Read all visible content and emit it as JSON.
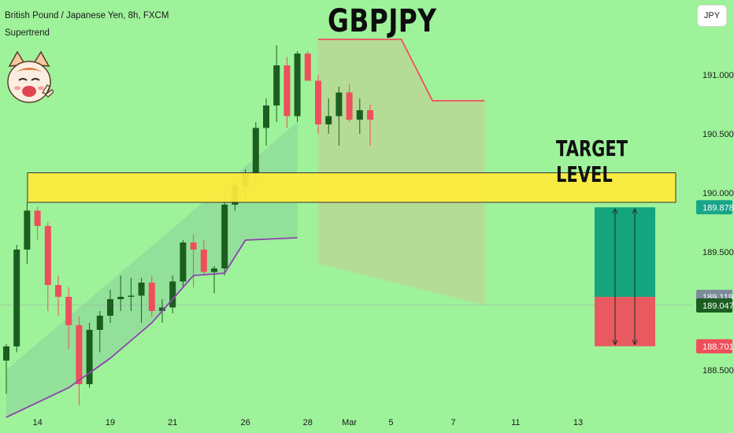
{
  "header": {
    "symbol_line": "British Pound / Japanese Yen, 8h, FXCM",
    "indicator": "Supertrend",
    "title": "GBPJPY",
    "target_label": "TARGET LEVEL",
    "currency_button": "JPY"
  },
  "colors": {
    "background": "#9ef29a",
    "up_candle": "#1b5e20",
    "down_candle": "#ef4f5c",
    "supertrend_up": "#8e44ad",
    "supertrend_down": "#ef4f5c",
    "zone_fill": "#ffeb3b",
    "target_profit": "#14a57f",
    "target_stop": "#e95a60"
  },
  "chart_data": {
    "type": "candlestick",
    "title": "GBPJPY",
    "symbol": "British Pound / Japanese Yen, 8h, FXCM",
    "y_range": [
      188.2,
      191.5
    ],
    "y_ticks": [
      191.0,
      190.5,
      190.0,
      189.5,
      189.0,
      188.5
    ],
    "y_tick_labels": [
      "191.000",
      "190.500",
      "190.000",
      "189.500",
      "",
      "188.500"
    ],
    "x_ticks": [
      {
        "label": "14",
        "index": 3
      },
      {
        "label": "19",
        "index": 10
      },
      {
        "label": "21",
        "index": 16
      },
      {
        "label": "26",
        "index": 23
      },
      {
        "label": "28",
        "index": 29
      },
      {
        "label": "Mar",
        "index": 33
      },
      {
        "label": "5",
        "index": 37
      },
      {
        "label": "7",
        "index": 43
      },
      {
        "label": "11",
        "index": 49
      },
      {
        "label": "13",
        "index": 55
      }
    ],
    "candles": [
      {
        "o": 188.58,
        "h": 188.72,
        "l": 188.3,
        "c": 188.7
      },
      {
        "o": 188.7,
        "h": 189.56,
        "l": 188.65,
        "c": 189.52
      },
      {
        "o": 189.52,
        "h": 189.92,
        "l": 189.4,
        "c": 189.85
      },
      {
        "o": 189.85,
        "h": 189.88,
        "l": 189.6,
        "c": 189.72
      },
      {
        "o": 189.72,
        "h": 189.75,
        "l": 189.0,
        "c": 189.22
      },
      {
        "o": 189.22,
        "h": 189.3,
        "l": 188.96,
        "c": 189.12
      },
      {
        "o": 189.12,
        "h": 189.2,
        "l": 188.68,
        "c": 188.88
      },
      {
        "o": 188.88,
        "h": 188.95,
        "l": 188.2,
        "c": 188.38
      },
      {
        "o": 188.38,
        "h": 188.9,
        "l": 188.35,
        "c": 188.84
      },
      {
        "o": 188.84,
        "h": 189.0,
        "l": 188.65,
        "c": 188.96
      },
      {
        "o": 188.96,
        "h": 189.18,
        "l": 188.9,
        "c": 189.1
      },
      {
        "o": 189.1,
        "h": 189.3,
        "l": 189.0,
        "c": 189.12
      },
      {
        "o": 189.12,
        "h": 189.28,
        "l": 189.0,
        "c": 189.13
      },
      {
        "o": 189.13,
        "h": 189.28,
        "l": 188.9,
        "c": 189.24
      },
      {
        "o": 189.24,
        "h": 189.3,
        "l": 188.95,
        "c": 189.0
      },
      {
        "o": 189.0,
        "h": 189.1,
        "l": 188.9,
        "c": 189.03
      },
      {
        "o": 189.03,
        "h": 189.3,
        "l": 188.98,
        "c": 189.25
      },
      {
        "o": 189.25,
        "h": 189.6,
        "l": 189.2,
        "c": 189.58
      },
      {
        "o": 189.58,
        "h": 189.65,
        "l": 189.2,
        "c": 189.52
      },
      {
        "o": 189.52,
        "h": 189.6,
        "l": 189.3,
        "c": 189.33
      },
      {
        "o": 189.33,
        "h": 189.38,
        "l": 189.15,
        "c": 189.36
      },
      {
        "o": 189.36,
        "h": 189.95,
        "l": 189.3,
        "c": 189.9
      },
      {
        "o": 189.9,
        "h": 190.1,
        "l": 189.85,
        "c": 190.06
      },
      {
        "o": 190.06,
        "h": 190.2,
        "l": 189.95,
        "c": 190.16
      },
      {
        "o": 190.16,
        "h": 190.6,
        "l": 190.1,
        "c": 190.55
      },
      {
        "o": 190.55,
        "h": 190.8,
        "l": 190.4,
        "c": 190.74
      },
      {
        "o": 190.74,
        "h": 191.25,
        "l": 190.6,
        "c": 191.08
      },
      {
        "o": 191.08,
        "h": 191.15,
        "l": 190.55,
        "c": 190.65
      },
      {
        "o": 190.65,
        "h": 191.2,
        "l": 190.6,
        "c": 191.18
      },
      {
        "o": 191.18,
        "h": 191.2,
        "l": 190.95,
        "c": 190.95
      },
      {
        "o": 190.95,
        "h": 191.0,
        "l": 190.5,
        "c": 190.58
      },
      {
        "o": 190.58,
        "h": 190.8,
        "l": 190.5,
        "c": 190.65
      },
      {
        "o": 190.65,
        "h": 190.9,
        "l": 190.4,
        "c": 190.85
      },
      {
        "o": 190.85,
        "h": 190.92,
        "l": 190.6,
        "c": 190.62
      },
      {
        "o": 190.62,
        "h": 190.8,
        "l": 190.5,
        "c": 190.7
      },
      {
        "o": 190.7,
        "h": 190.75,
        "l": 190.4,
        "c": 190.62
      }
    ],
    "supertrend_up": [
      {
        "i": 0,
        "y": 188.1
      },
      {
        "i": 6,
        "y": 188.35
      },
      {
        "i": 10,
        "y": 188.6
      },
      {
        "i": 14,
        "y": 188.9
      },
      {
        "i": 18,
        "y": 189.3
      },
      {
        "i": 21,
        "y": 189.32
      },
      {
        "i": 23,
        "y": 189.6
      },
      {
        "i": 28,
        "y": 189.62
      }
    ],
    "supertrend_down": [
      {
        "i": 30,
        "y": 191.3
      },
      {
        "i": 38,
        "y": 191.3
      },
      {
        "i": 41,
        "y": 190.78
      },
      {
        "i": 46,
        "y": 190.78
      }
    ],
    "zone": {
      "from": 189.92,
      "to": 190.17,
      "label": "TARGET LEVEL"
    },
    "position": {
      "entry": 189.119,
      "target": 189.878,
      "stop": 188.701
    },
    "price_labels": [
      {
        "value": 189.878,
        "text": "189.878",
        "color": "#17a589"
      },
      {
        "value": 189.119,
        "text": "189.119",
        "color": "#7d8a99"
      },
      {
        "value": 189.047,
        "text": "189.047",
        "color": "#1b5e20"
      },
      {
        "value": 188.701,
        "text": "188.701",
        "color": "#ef4f5c"
      }
    ]
  }
}
